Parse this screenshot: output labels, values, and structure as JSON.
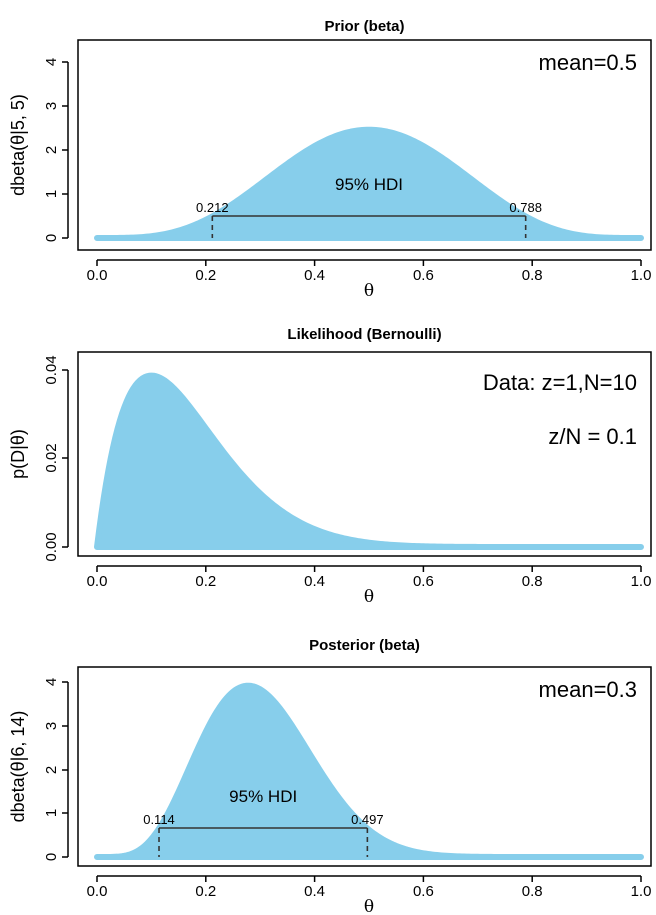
{
  "chart_data": [
    {
      "type": "area",
      "title": "Prior (beta)",
      "xlabel": "θ",
      "ylabel": "dbeta(θ|5, 5)",
      "xlim": [
        0,
        1
      ],
      "ylim": [
        0,
        4
      ],
      "xticks": [
        "0.0",
        "0.2",
        "0.4",
        "0.6",
        "0.8",
        "1.0"
      ],
      "yticks": [
        "0",
        "1",
        "2",
        "3",
        "4"
      ],
      "distribution": {
        "family": "beta",
        "a": 5,
        "b": 5
      },
      "peak": 2.46,
      "annotations": [
        "mean=0.5"
      ],
      "hdi": {
        "label": "95% HDI",
        "low": 0.212,
        "high": 0.788,
        "low_label": "0.212",
        "high_label": "0.788"
      },
      "fill_color": "#87ceeb"
    },
    {
      "type": "area",
      "title": "Likelihood (Bernoulli)",
      "xlabel": "θ",
      "ylabel": "p(D|θ)",
      "xlim": [
        0,
        1
      ],
      "ylim": [
        0,
        0.04
      ],
      "xticks": [
        "0.0",
        "0.2",
        "0.4",
        "0.6",
        "0.8",
        "1.0"
      ],
      "yticks": [
        "0.00",
        "0.02",
        "0.04"
      ],
      "distribution": {
        "family": "bernoulli_likelihood",
        "z": 1,
        "N": 10
      },
      "peak": 0.0387,
      "annotations": [
        "Data: z=1,N=10",
        "z/N = 0.1"
      ],
      "fill_color": "#87ceeb"
    },
    {
      "type": "area",
      "title": "Posterior (beta)",
      "xlabel": "θ",
      "ylabel": "dbeta(θ|6, 14)",
      "xlim": [
        0,
        1
      ],
      "ylim": [
        0,
        4
      ],
      "xticks": [
        "0.0",
        "0.2",
        "0.4",
        "0.6",
        "0.8",
        "1.0"
      ],
      "yticks": [
        "0",
        "1",
        "2",
        "3",
        "4"
      ],
      "distribution": {
        "family": "beta",
        "a": 6,
        "b": 14
      },
      "peak": 3.95,
      "annotations": [
        "mean=0.3"
      ],
      "hdi": {
        "label": "95% HDI",
        "low": 0.114,
        "high": 0.497,
        "low_label": "0.114",
        "high_label": "0.497"
      },
      "fill_color": "#87ceeb"
    }
  ]
}
